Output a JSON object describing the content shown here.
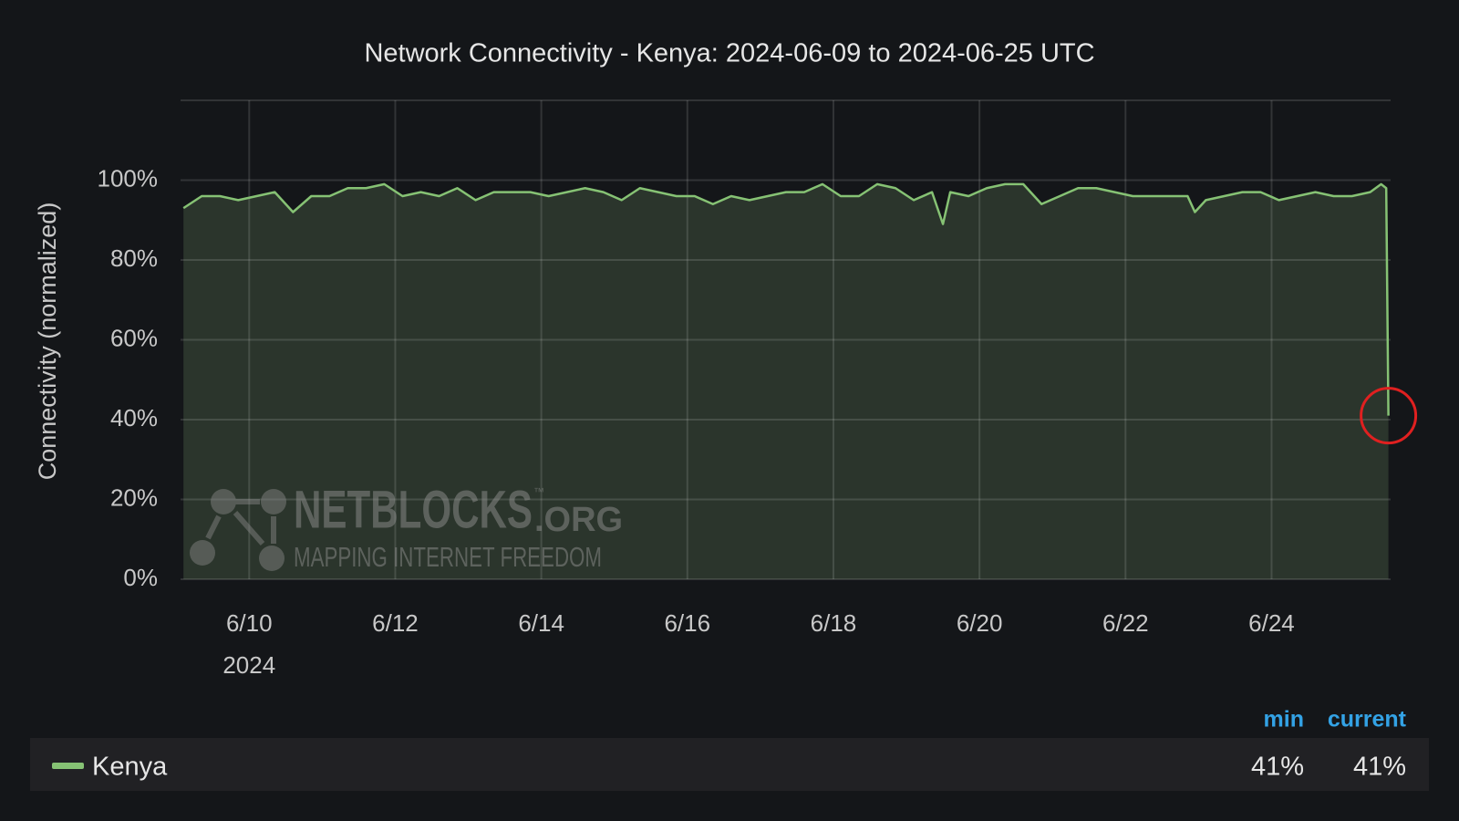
{
  "chart_data": {
    "type": "line",
    "title": "Network Connectivity - Kenya: 2024-06-09 to 2024-06-25 UTC",
    "y_label": "Connectivity (normalized)",
    "x_year_label": "2024",
    "x": [
      9.1,
      9.35,
      9.6,
      9.85,
      10.1,
      10.35,
      10.6,
      10.85,
      11.1,
      11.35,
      11.6,
      11.85,
      12.1,
      12.35,
      12.6,
      12.85,
      13.1,
      13.35,
      13.6,
      13.85,
      14.1,
      14.35,
      14.6,
      14.85,
      15.1,
      15.35,
      15.6,
      15.85,
      16.1,
      16.35,
      16.6,
      16.85,
      17.1,
      17.35,
      17.6,
      17.85,
      18.1,
      18.35,
      18.6,
      18.85,
      19.1,
      19.35,
      19.5,
      19.6,
      19.85,
      20.1,
      20.35,
      20.6,
      20.85,
      21.1,
      21.35,
      21.6,
      21.85,
      22.1,
      22.35,
      22.6,
      22.85,
      22.95,
      23.1,
      23.35,
      23.6,
      23.85,
      24.1,
      24.35,
      24.6,
      24.85,
      25.1,
      25.35,
      25.5,
      25.57,
      25.6
    ],
    "series": [
      {
        "name": "Kenya",
        "color": "#86c274",
        "values": [
          93,
          96,
          96,
          95,
          96,
          97,
          92,
          96,
          96,
          98,
          98,
          99,
          96,
          97,
          96,
          98,
          95,
          97,
          97,
          97,
          96,
          97,
          98,
          97,
          95,
          98,
          97,
          96,
          96,
          94,
          96,
          95,
          96,
          97,
          97,
          99,
          96,
          96,
          99,
          98,
          95,
          97,
          89,
          97,
          96,
          98,
          99,
          99,
          94,
          96,
          98,
          98,
          97,
          96,
          96,
          96,
          96,
          92,
          95,
          96,
          97,
          97,
          95,
          96,
          97,
          96,
          96,
          97,
          99,
          98,
          41
        ]
      }
    ],
    "xlim": [
      9.06,
      25.63
    ],
    "xticks": [
      {
        "value": 10,
        "label": "6/10"
      },
      {
        "value": 12,
        "label": "6/12"
      },
      {
        "value": 14,
        "label": "6/14"
      },
      {
        "value": 16,
        "label": "6/16"
      },
      {
        "value": 18,
        "label": "6/18"
      },
      {
        "value": 20,
        "label": "6/20"
      },
      {
        "value": 22,
        "label": "6/22"
      },
      {
        "value": 24,
        "label": "6/24"
      }
    ],
    "ylim": [
      0,
      120
    ],
    "yticks": [
      {
        "value": 0,
        "label": "0%"
      },
      {
        "value": 20,
        "label": "20%"
      },
      {
        "value": 40,
        "label": "40%"
      },
      {
        "value": 60,
        "label": "60%"
      },
      {
        "value": 80,
        "label": "80%"
      },
      {
        "value": 100,
        "label": "100%"
      }
    ],
    "grid": true,
    "legend_stats": {
      "headers": [
        "min",
        "current"
      ],
      "values": [
        41,
        41
      ],
      "value_labels": [
        "41%",
        "41%"
      ]
    },
    "watermark": {
      "brand": "NETBLOCKS",
      "domain": ".ORG",
      "trademark": "™",
      "tagline": "MAPPING INTERNET FREEDOM"
    }
  }
}
